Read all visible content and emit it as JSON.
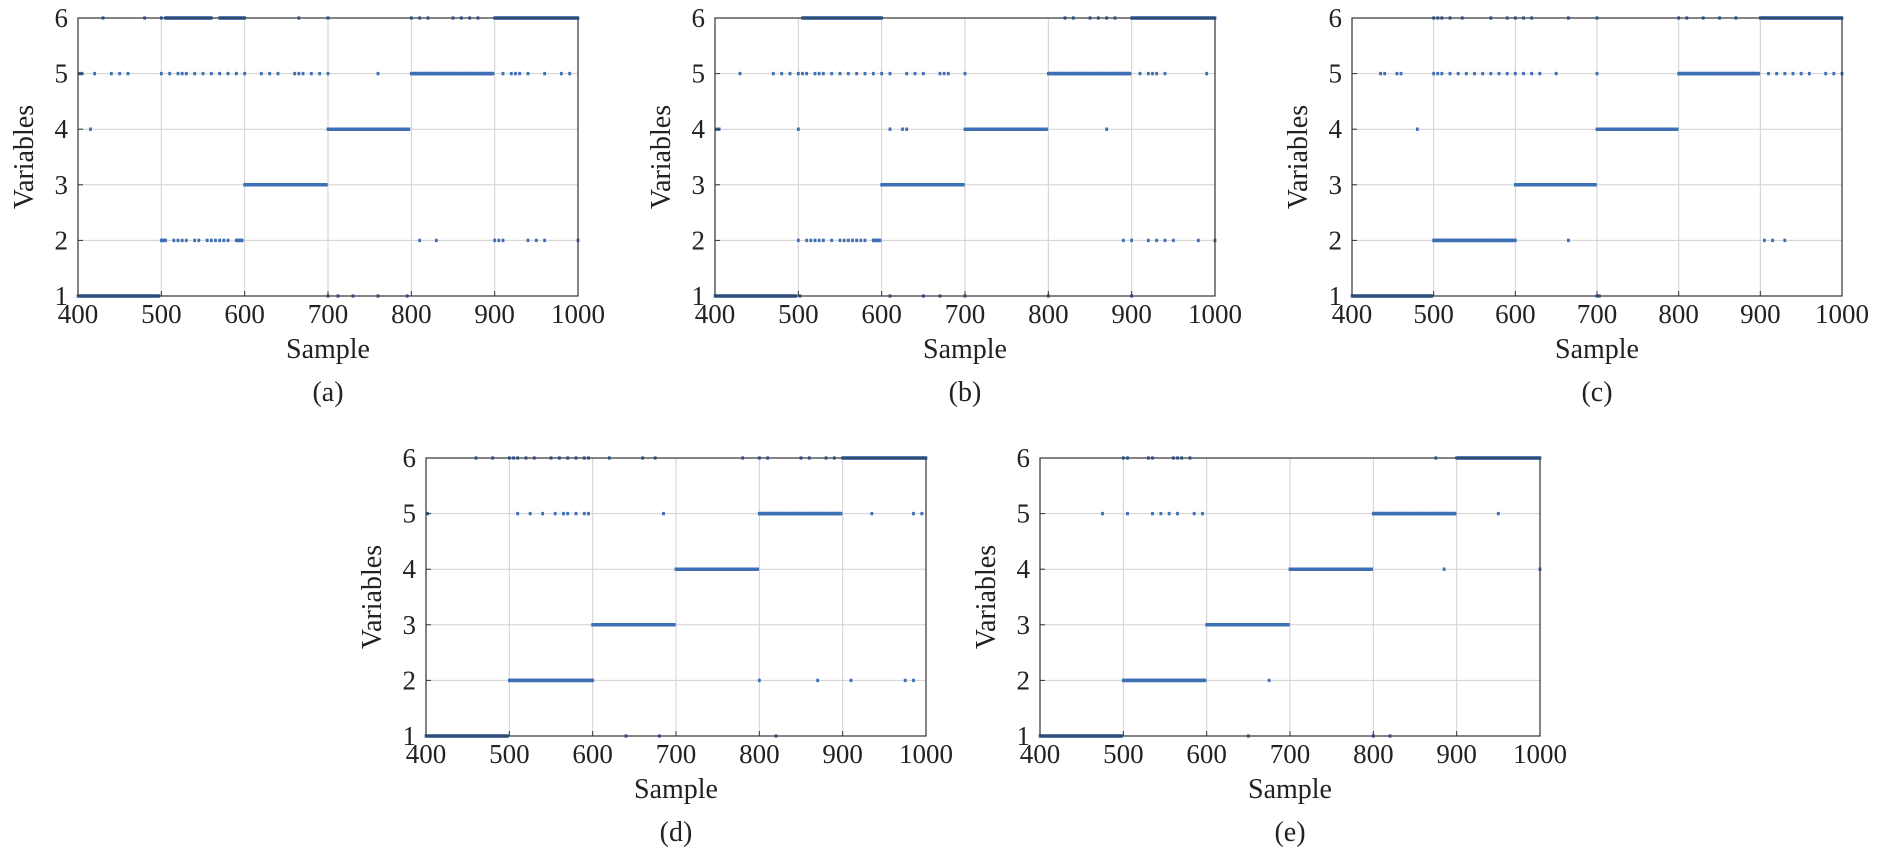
{
  "figure": {
    "marker_color": "#3f6fb5",
    "grid_color": "#d0d0d0",
    "axis_color": "#333333"
  },
  "chart_data": [
    {
      "type": "scatter",
      "caption": "(a)",
      "xlabel": "Sample",
      "ylabel": "Variables",
      "xlim": [
        400,
        1000
      ],
      "ylim": [
        1,
        6
      ],
      "xticks": [
        400,
        500,
        600,
        700,
        800,
        900,
        1000
      ],
      "yticks": [
        1,
        2,
        3,
        4,
        5,
        6
      ],
      "grid": true,
      "points": {
        "1": [
          [
            400,
            497
          ],
          700,
          712,
          730,
          760,
          795
        ],
        "2": [
          [
            500,
            505
          ],
          515,
          520,
          525,
          530,
          540,
          545,
          555,
          560,
          565,
          570,
          575,
          580,
          [
            590,
            597
          ],
          810,
          830,
          900,
          905,
          910,
          940,
          950,
          960,
          1000
        ],
        "3": [
          [
            600,
            698
          ]
        ],
        "4": [
          415,
          [
            700,
            797
          ]
        ],
        "5": [
          402,
          405,
          420,
          440,
          450,
          460,
          500,
          510,
          520,
          525,
          530,
          540,
          550,
          560,
          570,
          580,
          590,
          600,
          620,
          630,
          640,
          660,
          665,
          670,
          680,
          690,
          700,
          760,
          [
            800,
            898
          ],
          910,
          920,
          925,
          930,
          940,
          960,
          980,
          990
        ],
        "6": [
          430,
          480,
          500,
          [
            505,
            560
          ],
          [
            570,
            600
          ],
          665,
          700,
          800,
          810,
          820,
          850,
          860,
          870,
          880,
          [
            900,
            1000
          ]
        ]
      }
    },
    {
      "type": "scatter",
      "caption": "(b)",
      "xlabel": "Sample",
      "ylabel": "Variables",
      "xlim": [
        400,
        1000
      ],
      "ylim": [
        1,
        6
      ],
      "xticks": [
        400,
        500,
        600,
        700,
        800,
        900,
        1000
      ],
      "yticks": [
        1,
        2,
        3,
        4,
        5,
        6
      ],
      "grid": true,
      "points": {
        "1": [
          [
            400,
            497
          ],
          502,
          610,
          650,
          670,
          700,
          800,
          900
        ],
        "2": [
          500,
          510,
          515,
          520,
          525,
          530,
          540,
          550,
          555,
          560,
          565,
          570,
          575,
          580,
          [
            590,
            598
          ],
          890,
          900,
          920,
          930,
          940,
          950,
          980,
          1000
        ],
        "3": [
          [
            600,
            698
          ]
        ],
        "4": [
          402,
          405,
          500,
          610,
          625,
          630,
          [
            700,
            798
          ],
          870
        ],
        "5": [
          430,
          470,
          480,
          490,
          500,
          505,
          510,
          520,
          525,
          530,
          540,
          550,
          560,
          570,
          580,
          590,
          600,
          610,
          630,
          640,
          650,
          670,
          675,
          680,
          700,
          [
            800,
            898
          ],
          910,
          920,
          925,
          930,
          940,
          990
        ],
        "6": [
          [
            505,
            600
          ],
          820,
          830,
          850,
          860,
          870,
          880,
          [
            900,
            1000
          ]
        ]
      }
    },
    {
      "type": "scatter",
      "caption": "(c)",
      "xlabel": "Sample",
      "ylabel": "Variables",
      "xlim": [
        400,
        1000
      ],
      "ylim": [
        1,
        6
      ],
      "xticks": [
        400,
        500,
        600,
        700,
        800,
        900,
        1000
      ],
      "yticks": [
        1,
        2,
        3,
        4,
        5,
        6
      ],
      "grid": true,
      "points": {
        "1": [
          [
            400,
            498
          ],
          700,
          703
        ],
        "2": [
          [
            500,
            600
          ],
          665,
          905,
          915,
          930
        ],
        "3": [
          [
            600,
            698
          ]
        ],
        "4": [
          480,
          [
            700,
            798
          ]
        ],
        "5": [
          435,
          440,
          455,
          460,
          500,
          505,
          510,
          520,
          530,
          540,
          550,
          560,
          570,
          580,
          590,
          600,
          610,
          620,
          630,
          650,
          700,
          [
            800,
            898
          ],
          910,
          920,
          930,
          940,
          950,
          960,
          980,
          990,
          1000
        ],
        "6": [
          500,
          505,
          510,
          520,
          535,
          570,
          590,
          600,
          610,
          620,
          665,
          700,
          800,
          810,
          830,
          850,
          870,
          [
            900,
            1000
          ]
        ]
      }
    },
    {
      "type": "scatter",
      "caption": "(d)",
      "xlabel": "Sample",
      "ylabel": "Variables",
      "xlim": [
        400,
        1000
      ],
      "ylim": [
        1,
        6
      ],
      "xticks": [
        400,
        500,
        600,
        700,
        800,
        900,
        1000
      ],
      "yticks": [
        1,
        2,
        3,
        4,
        5,
        6
      ],
      "grid": true,
      "points": {
        "1": [
          [
            400,
            498
          ],
          640,
          680,
          820
        ],
        "2": [
          [
            500,
            600
          ],
          800,
          870,
          910,
          975,
          985
        ],
        "3": [
          [
            600,
            698
          ]
        ],
        "4": [
          [
            700,
            798
          ]
        ],
        "5": [
          402,
          510,
          525,
          540,
          555,
          565,
          570,
          580,
          590,
          595,
          685,
          [
            800,
            898
          ],
          935,
          985,
          995
        ],
        "6": [
          460,
          480,
          500,
          505,
          510,
          520,
          530,
          550,
          560,
          570,
          580,
          590,
          595,
          620,
          660,
          675,
          780,
          800,
          810,
          850,
          860,
          880,
          890,
          [
            900,
            1000
          ]
        ]
      }
    },
    {
      "type": "scatter",
      "caption": "(e)",
      "xlabel": "Sample",
      "ylabel": "Variables",
      "xlim": [
        400,
        1000
      ],
      "ylim": [
        1,
        6
      ],
      "xticks": [
        400,
        500,
        600,
        700,
        800,
        900,
        1000
      ],
      "yticks": [
        1,
        2,
        3,
        4,
        5,
        6
      ],
      "grid": true,
      "points": {
        "1": [
          [
            400,
            498
          ],
          650,
          800,
          820
        ],
        "2": [
          [
            500,
            598
          ],
          675
        ],
        "3": [
          [
            600,
            698
          ]
        ],
        "4": [
          [
            700,
            798
          ],
          885,
          1000
        ],
        "5": [
          475,
          505,
          535,
          545,
          555,
          565,
          585,
          595,
          [
            800,
            898
          ],
          950
        ],
        "6": [
          500,
          505,
          530,
          535,
          560,
          565,
          570,
          580,
          875,
          [
            900,
            1000
          ]
        ]
      }
    }
  ]
}
